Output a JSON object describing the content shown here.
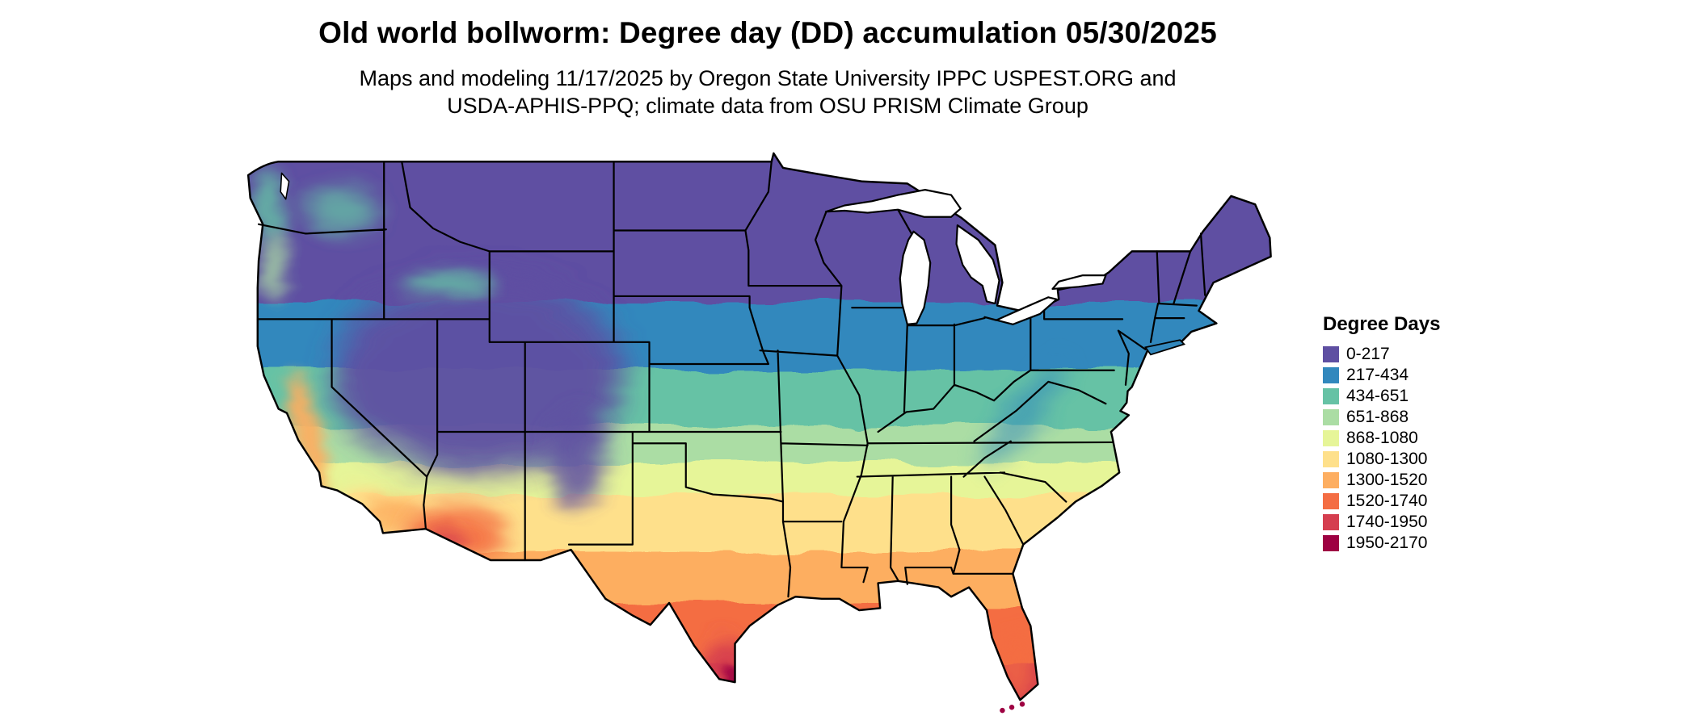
{
  "header": {
    "title": "Old world bollworm: Degree day (DD) accumulation 05/30/2025",
    "subtitle_line1": "Maps and modeling 11/17/2025 by Oregon State University IPPC USPEST.ORG and",
    "subtitle_line2": "USDA-APHIS-PPQ; climate data from OSU PRISM Climate Group"
  },
  "map": {
    "region": "Continental United States",
    "kind": "degree-day accumulation choropleth with state boundaries and Great Lakes"
  },
  "legend": {
    "title": "Degree Days",
    "items": [
      {
        "label": "0-217",
        "color": "#5e4fa2"
      },
      {
        "label": "217-434",
        "color": "#3288bd"
      },
      {
        "label": "434-651",
        "color": "#66c2a5"
      },
      {
        "label": "651-868",
        "color": "#abdda4"
      },
      {
        "label": "868-1080",
        "color": "#e6f598"
      },
      {
        "label": "1080-1300",
        "color": "#fee08b"
      },
      {
        "label": "1300-1520",
        "color": "#fdae61"
      },
      {
        "label": "1520-1740",
        "color": "#f46d43"
      },
      {
        "label": "1740-1950",
        "color": "#d53e4f"
      },
      {
        "label": "1950-2170",
        "color": "#9e0142"
      }
    ]
  }
}
